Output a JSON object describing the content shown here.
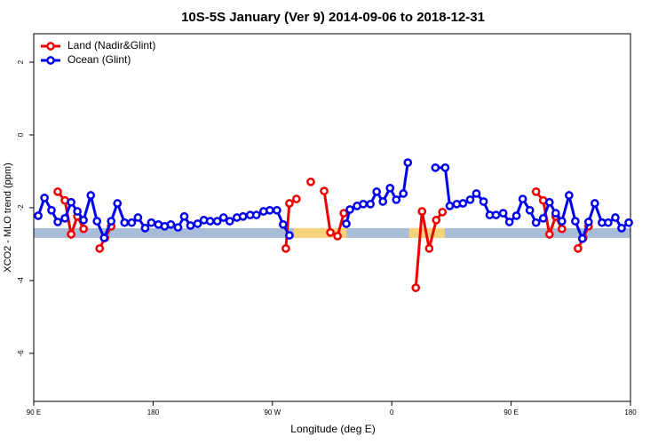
{
  "chart_data": {
    "type": "line",
    "title": "10S-5S January (Ver 9)   2014-09-06 to 2018-12-31",
    "x_label": "Longitude (deg E)",
    "y_label": "XCO2 - MLO trend (ppm)",
    "xlim": [
      90,
      540
    ],
    "ylim": [
      -7.32,
      2.78
    ],
    "xticks": [
      {
        "value": 90,
        "label": "90 E"
      },
      180,
      {
        "value": 270,
        "label": "90 W"
      },
      {
        "value": 360,
        "label": "0"
      },
      {
        "value": 450,
        "label": "90 E"
      },
      {
        "value": 540,
        "label": "180"
      }
    ],
    "yticks": [
      -6,
      -4,
      -2,
      0,
      2
    ],
    "legend": "top-left",
    "ocean_band": {
      "ymin": -2.83,
      "ymax": -2.56,
      "color": "#a8bcd8"
    },
    "land_spans": {
      "color": "#f5d37a",
      "ranges": [
        [
          286,
          326
        ],
        [
          373,
          400
        ]
      ]
    },
    "series": [
      {
        "name": "Land (Nadir&Glint)",
        "color": "#ee0000",
        "x": [
          108.1,
          113.5,
          118.2,
          122.9,
          127.6,
          null,
          139.7,
          143.7,
          148.4,
          null,
          280.1,
          282.8,
          288.1,
          null,
          298.9,
          null,
          309,
          313.7,
          319.1,
          323.8,
          null,
          378.1,
          382.8,
          388.2,
          393.5,
          398.2,
          null,
          468.8,
          474.2,
          478.9,
          483.6,
          488.3,
          null,
          500.4,
          504.4,
          508.4
        ],
        "values": [
          -1.56,
          -1.8,
          -2.73,
          -2.24,
          -2.58,
          null,
          -3.12,
          -2.83,
          -2.51,
          null,
          -3.12,
          -1.88,
          -1.76,
          null,
          -1.29,
          null,
          -1.54,
          -2.68,
          -2.78,
          -2.15,
          null,
          -4.2,
          -2.1,
          -3.12,
          -2.34,
          -2.12,
          null,
          -1.56,
          -1.8,
          -2.73,
          -2.24,
          -2.58,
          null,
          -3.12,
          -2.83,
          -2.51
        ]
      },
      {
        "name": "Ocean (Glint)",
        "color": "#0000ee",
        "x": [
          93.4,
          98.1,
          103.4,
          108.1,
          113.5,
          118.2,
          122.9,
          127.6,
          133,
          137.7,
          143.1,
          148.4,
          153.1,
          158.5,
          163.9,
          168.6,
          174,
          178.7,
          184,
          188.7,
          193.4,
          198.8,
          203.5,
          208.2,
          213.6,
          218.3,
          223,
          228.4,
          233.1,
          237.8,
          243.2,
          247.8,
          253.2,
          257.9,
          263.3,
          268,
          273.4,
          278.1,
          282.8,
          null,
          325.7,
          328.4,
          333.8,
          338.5,
          343.9,
          348.6,
          353.3,
          358.7,
          363.4,
          368.7,
          372.1,
          null,
          392.9,
          400.3,
          403.7,
          409,
          413.7,
          419.1,
          423.8,
          429.2,
          433.9,
          438.6,
          444,
          448.7,
          454,
          458.7,
          464.1,
          468.8,
          474.2,
          478.9,
          483.6,
          488.3,
          493.7,
          498.4,
          503.7,
          508.4,
          513.1,
          518.5,
          523.2,
          528.6,
          533.3,
          538.7
        ],
        "values": [
          -2.22,
          -1.73,
          -2.07,
          -2.39,
          -2.29,
          -1.85,
          -2.1,
          -2.34,
          -1.66,
          -2.37,
          -2.83,
          -2.37,
          -1.88,
          -2.41,
          -2.41,
          -2.27,
          -2.56,
          -2.41,
          -2.46,
          -2.51,
          -2.46,
          -2.54,
          -2.24,
          -2.49,
          -2.44,
          -2.34,
          -2.37,
          -2.37,
          -2.27,
          -2.37,
          -2.27,
          -2.24,
          -2.2,
          -2.2,
          -2.1,
          -2.07,
          -2.07,
          -2.46,
          -2.76,
          null,
          -2.44,
          -2.05,
          -1.95,
          -1.9,
          -1.9,
          -1.56,
          -1.83,
          -1.46,
          -1.78,
          -1.61,
          -0.76,
          null,
          -0.9,
          -0.9,
          -1.95,
          -1.9,
          -1.88,
          -1.78,
          -1.61,
          -1.83,
          -2.2,
          -2.2,
          -2.15,
          -2.39,
          -2.22,
          -1.76,
          -2.07,
          -2.41,
          -2.29,
          -1.85,
          -2.15,
          -2.37,
          -1.66,
          -2.37,
          -2.85,
          -2.39,
          -1.88,
          -2.41,
          -2.41,
          -2.27,
          -2.56,
          -2.41
        ]
      }
    ]
  }
}
